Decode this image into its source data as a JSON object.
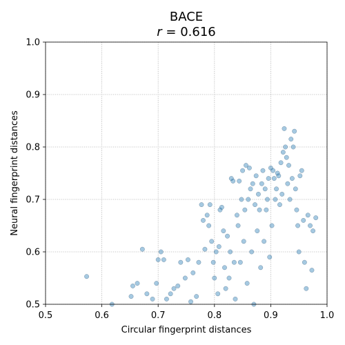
{
  "chart_data": {
    "type": "scatter",
    "title": "BACE",
    "subtitle": "r = 0.616",
    "subtitle_italic_part": "r",
    "subtitle_rest": " = 0.616",
    "xlabel": "Circular fingerprint distances",
    "ylabel": "Neural fingerprint distances",
    "xlim": [
      0.5,
      1.0
    ],
    "ylim": [
      0.5,
      1.0
    ],
    "xticks": [
      "0.5",
      "0.6",
      "0.7",
      "0.8",
      "0.9",
      "1.0"
    ],
    "yticks": [
      "0.5",
      "0.6",
      "0.7",
      "0.8",
      "0.9",
      "1.0"
    ],
    "grid": true,
    "point_color": "#1f77b4",
    "point_alpha": 0.4,
    "points": [
      [
        0.573,
        0.553
      ],
      [
        0.618,
        0.5
      ],
      [
        0.652,
        0.515
      ],
      [
        0.655,
        0.535
      ],
      [
        0.663,
        0.54
      ],
      [
        0.672,
        0.605
      ],
      [
        0.68,
        0.52
      ],
      [
        0.69,
        0.51
      ],
      [
        0.697,
        0.54
      ],
      [
        0.7,
        0.585
      ],
      [
        0.705,
        0.6
      ],
      [
        0.71,
        0.585
      ],
      [
        0.715,
        0.51
      ],
      [
        0.722,
        0.52
      ],
      [
        0.728,
        0.53
      ],
      [
        0.735,
        0.535
      ],
      [
        0.74,
        0.58
      ],
      [
        0.748,
        0.55
      ],
      [
        0.753,
        0.585
      ],
      [
        0.758,
        0.505
      ],
      [
        0.762,
        0.56
      ],
      [
        0.768,
        0.515
      ],
      [
        0.772,
        0.58
      ],
      [
        0.777,
        0.69
      ],
      [
        0.78,
        0.66
      ],
      [
        0.783,
        0.605
      ],
      [
        0.787,
        0.67
      ],
      [
        0.79,
        0.65
      ],
      [
        0.792,
        0.69
      ],
      [
        0.795,
        0.62
      ],
      [
        0.798,
        0.58
      ],
      [
        0.8,
        0.55
      ],
      [
        0.803,
        0.6
      ],
      [
        0.806,
        0.52
      ],
      [
        0.808,
        0.61
      ],
      [
        0.81,
        0.68
      ],
      [
        0.813,
        0.685
      ],
      [
        0.816,
        0.64
      ],
      [
        0.818,
        0.57
      ],
      [
        0.82,
        0.53
      ],
      [
        0.823,
        0.63
      ],
      [
        0.826,
        0.55
      ],
      [
        0.828,
        0.6
      ],
      [
        0.83,
        0.74
      ],
      [
        0.833,
        0.735
      ],
      [
        0.835,
        0.58
      ],
      [
        0.837,
        0.51
      ],
      [
        0.84,
        0.67
      ],
      [
        0.842,
        0.65
      ],
      [
        0.844,
        0.735
      ],
      [
        0.846,
        0.58
      ],
      [
        0.848,
        0.7
      ],
      [
        0.85,
        0.755
      ],
      [
        0.852,
        0.62
      ],
      [
        0.854,
        0.68
      ],
      [
        0.856,
        0.765
      ],
      [
        0.858,
        0.54
      ],
      [
        0.86,
        0.7
      ],
      [
        0.862,
        0.76
      ],
      [
        0.864,
        0.72
      ],
      [
        0.866,
        0.6
      ],
      [
        0.868,
        0.73
      ],
      [
        0.87,
        0.5
      ],
      [
        0.872,
        0.69
      ],
      [
        0.874,
        0.745
      ],
      [
        0.876,
        0.64
      ],
      [
        0.878,
        0.71
      ],
      [
        0.88,
        0.68
      ],
      [
        0.882,
        0.57
      ],
      [
        0.884,
        0.73
      ],
      [
        0.886,
        0.755
      ],
      [
        0.888,
        0.62
      ],
      [
        0.89,
        0.72
      ],
      [
        0.892,
        0.68
      ],
      [
        0.894,
        0.7
      ],
      [
        0.896,
        0.74
      ],
      [
        0.898,
        0.59
      ],
      [
        0.9,
        0.76
      ],
      [
        0.902,
        0.65
      ],
      [
        0.904,
        0.755
      ],
      [
        0.906,
        0.74
      ],
      [
        0.908,
        0.7
      ],
      [
        0.91,
        0.72
      ],
      [
        0.912,
        0.75
      ],
      [
        0.914,
        0.745
      ],
      [
        0.916,
        0.69
      ],
      [
        0.918,
        0.77
      ],
      [
        0.92,
        0.71
      ],
      [
        0.922,
        0.79
      ],
      [
        0.924,
        0.835
      ],
      [
        0.926,
        0.8
      ],
      [
        0.928,
        0.78
      ],
      [
        0.93,
        0.73
      ],
      [
        0.932,
        0.765
      ],
      [
        0.934,
        0.7
      ],
      [
        0.936,
        0.815
      ],
      [
        0.938,
        0.74
      ],
      [
        0.94,
        0.8
      ],
      [
        0.942,
        0.83
      ],
      [
        0.944,
        0.72
      ],
      [
        0.946,
        0.68
      ],
      [
        0.948,
        0.65
      ],
      [
        0.95,
        0.6
      ],
      [
        0.952,
        0.745
      ],
      [
        0.955,
        0.755
      ],
      [
        0.958,
        0.66
      ],
      [
        0.96,
        0.58
      ],
      [
        0.963,
        0.53
      ],
      [
        0.966,
        0.67
      ],
      [
        0.97,
        0.65
      ],
      [
        0.973,
        0.565
      ],
      [
        0.975,
        0.64
      ],
      [
        0.98,
        0.665
      ]
    ]
  }
}
